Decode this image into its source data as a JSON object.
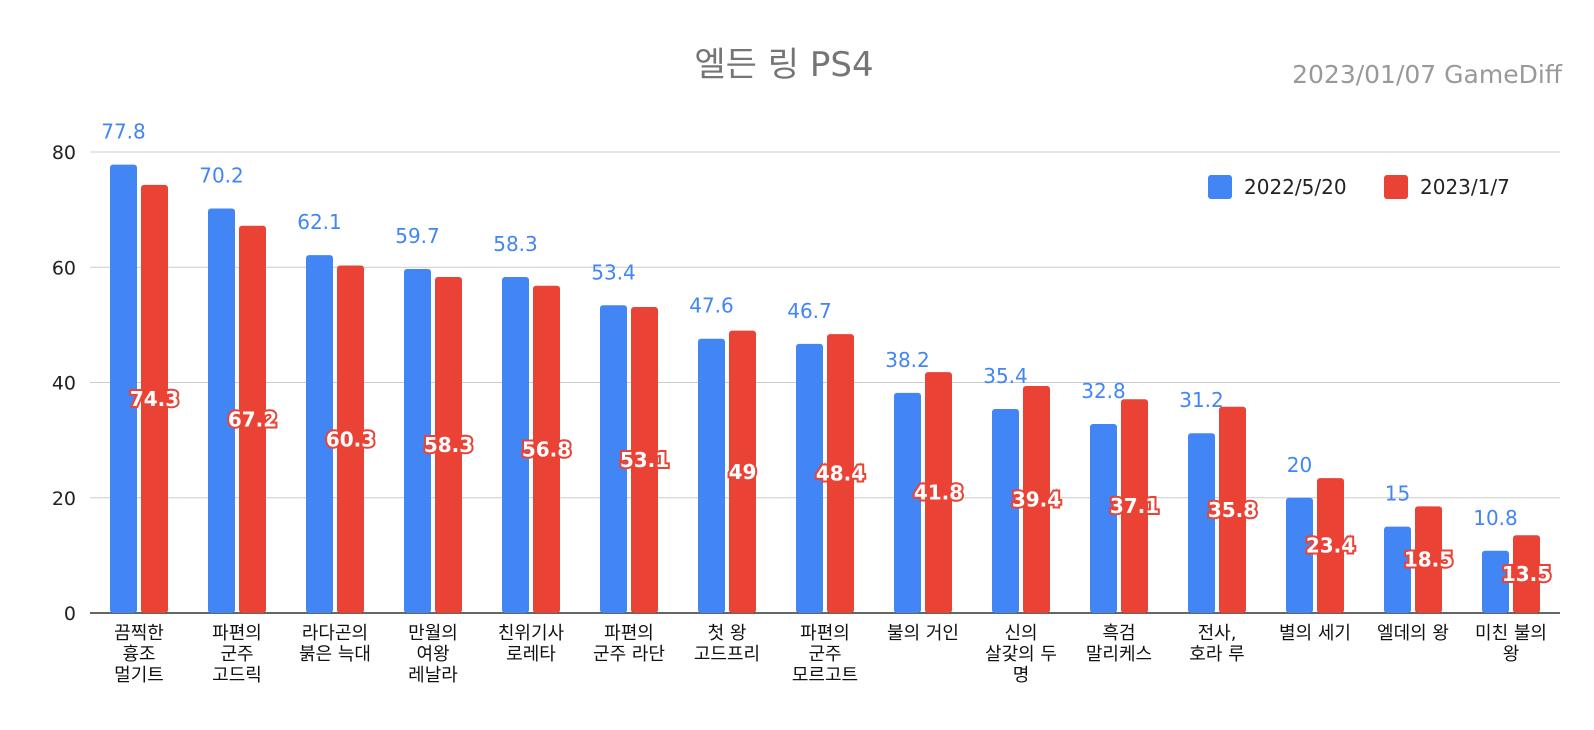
{
  "chart_data": {
    "type": "bar",
    "title": "엘든 링 PS4",
    "subtitle": "2023/01/07  GameDiff",
    "categories": [
      [
        "끔찍한",
        "흉조",
        "멀기트"
      ],
      [
        "파편의",
        "군주",
        "고드릭"
      ],
      [
        "라다곤의",
        "붉은 늑대"
      ],
      [
        "만월의",
        "여왕",
        "레날라"
      ],
      [
        "친위기사",
        "로레타"
      ],
      [
        "파편의",
        "군주 라단"
      ],
      [
        "첫 왕",
        "고드프리"
      ],
      [
        "파편의",
        "군주",
        "모르고트"
      ],
      [
        "불의 거인"
      ],
      [
        "신의",
        "살갗의 두",
        "명"
      ],
      [
        "흑검",
        "말리케스"
      ],
      [
        "전사,",
        "호라 루"
      ],
      [
        "별의 세기"
      ],
      [
        "엘데의 왕"
      ],
      [
        "미친 불의",
        "왕"
      ]
    ],
    "series": [
      {
        "name": "2022/5/20",
        "color": "#4285f4",
        "values": [
          77.8,
          70.2,
          62.1,
          59.7,
          58.3,
          53.4,
          47.6,
          46.7,
          38.2,
          35.4,
          32.8,
          31.2,
          20,
          15,
          10.8
        ],
        "labels": [
          "77.8",
          "70.2",
          "62.1",
          "59.7",
          "58.3",
          "53.4",
          "47.6",
          "46.7",
          "38.2",
          "35.4",
          "32.8",
          "31.2",
          "20",
          "15",
          "10.8"
        ]
      },
      {
        "name": "2023/1/7",
        "color": "#ea4335",
        "values": [
          74.3,
          67.2,
          60.3,
          58.3,
          56.8,
          53.1,
          49,
          48.4,
          41.8,
          39.4,
          37.1,
          35.8,
          23.4,
          18.5,
          13.5
        ],
        "labels": [
          "74.3",
          "67.2",
          "60.3",
          "58.3",
          "56.8",
          "53.1",
          "49",
          "48.4",
          "41.8",
          "39.4",
          "37.1",
          "35.8",
          "23.4",
          "18.5",
          "13.5"
        ]
      }
    ],
    "yticks": [
      "0",
      "20",
      "40",
      "60",
      "80"
    ],
    "ylim": [
      0,
      80
    ],
    "grid": true,
    "legend_position": "top-right",
    "xlabel": "",
    "ylabel": ""
  }
}
